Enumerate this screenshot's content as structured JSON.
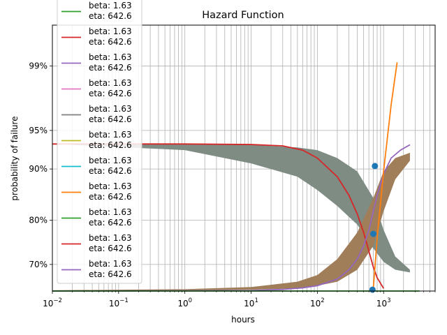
{
  "chart_data": {
    "type": "line",
    "title": "Hazard Function",
    "xlabel": "hours",
    "ylabel": "probability of failure",
    "xscale": "log",
    "xlim": [
      0.01,
      6000
    ],
    "x_ticks": [
      0.01,
      0.1,
      1,
      10,
      100,
      1000
    ],
    "x_tick_labels": [
      {
        "base": "10",
        "exp": "−2"
      },
      {
        "base": "10",
        "exp": "−1"
      },
      {
        "base": "10",
        "exp": "0"
      },
      {
        "base": "10",
        "exp": "1"
      },
      {
        "base": "10",
        "exp": "2"
      },
      {
        "base": "10",
        "exp": "3"
      }
    ],
    "y_ticks": [
      {
        "label": "70%",
        "frac": 0.1
      },
      {
        "label": "80%",
        "frac": 0.266
      },
      {
        "label": "90%",
        "frac": 0.459
      },
      {
        "label": "95%",
        "frac": 0.604
      },
      {
        "label": "99%",
        "frac": 0.846
      }
    ],
    "grid": true,
    "legend_position": "top-left",
    "legend": [
      {
        "label": "beta: 1.63\neta: 642.6",
        "color": "#2ca02c"
      },
      {
        "label": "beta: 1.63\neta: 642.6",
        "color": "#d62728"
      },
      {
        "label": "beta: 1.63\neta: 642.6",
        "color": "#9467bd"
      },
      {
        "label": "beta: 1.63\neta: 642.6",
        "color": "#e377c2"
      },
      {
        "label": "beta: 1.63\neta: 642.6",
        "color": "#7f7f7f"
      },
      {
        "label": "beta: 1.63\neta: 642.6",
        "color": "#bcbd22"
      },
      {
        "label": "beta: 1.63\neta: 642.6",
        "color": "#17becf"
      },
      {
        "label": "beta: 1.63\neta: 642.6",
        "color": "#ff7f0e"
      },
      {
        "label": "beta: 1.63\neta: 642.6",
        "color": "#2ca02c"
      },
      {
        "label": "beta: 1.63\neta: 642.6",
        "color": "#d62728"
      },
      {
        "label": "beta: 1.63\neta: 642.6",
        "color": "#9467bd"
      }
    ],
    "bands": [
      {
        "name": "",
        "color": "#7f8c84",
        "x": [
          0.01,
          1,
          10,
          50,
          100,
          200,
          400,
          700,
          1000,
          1500,
          2500
        ],
        "upper": [
          0.553,
          0.553,
          0.55,
          0.54,
          0.53,
          0.5,
          0.45,
          0.35,
          0.23,
          0.13,
          0.08
        ],
        "lower": [
          0.553,
          0.53,
          0.48,
          0.43,
          0.38,
          0.32,
          0.25,
          0.16,
          0.11,
          0.08,
          0.07
        ]
      },
      {
        "name": "",
        "color": "#a07e5a",
        "x": [
          0.01,
          1,
          10,
          50,
          100,
          200,
          400,
          700,
          1000,
          1500,
          2500
        ],
        "upper": [
          0.003,
          0.007,
          0.015,
          0.035,
          0.06,
          0.12,
          0.22,
          0.35,
          0.45,
          0.5,
          0.52
        ],
        "lower": [
          0.002,
          0.003,
          0.005,
          0.01,
          0.02,
          0.035,
          0.08,
          0.17,
          0.3,
          0.42,
          0.49
        ]
      }
    ],
    "series": [
      {
        "name": "",
        "color": "#d62728",
        "x": [
          0.01,
          1,
          10,
          30,
          60,
          100,
          200,
          300,
          400,
          500,
          600,
          700,
          800,
          1000
        ],
        "frac": [
          0.553,
          0.553,
          0.551,
          0.546,
          0.53,
          0.5,
          0.43,
          0.36,
          0.29,
          0.22,
          0.15,
          0.09,
          0.05,
          0.01
        ]
      },
      {
        "name": "",
        "color": "#9467bd",
        "x": [
          0.01,
          1,
          10,
          30,
          60,
          100,
          200,
          300,
          400,
          500,
          600,
          700,
          800,
          1000,
          1300,
          1800,
          2500
        ],
        "frac": [
          0.0,
          0.001,
          0.002,
          0.006,
          0.012,
          0.02,
          0.045,
          0.08,
          0.12,
          0.17,
          0.23,
          0.3,
          0.36,
          0.44,
          0.5,
          0.53,
          0.55
        ]
      },
      {
        "name": "",
        "color": "#ff7f0e",
        "x": [
          700,
          800,
          1000,
          1300,
          1600
        ],
        "frac": [
          0.01,
          0.2,
          0.45,
          0.7,
          0.86
        ]
      },
      {
        "name": "",
        "color": "#2ca02c",
        "x": [
          0.01,
          1000,
          3500
        ],
        "frac": [
          0.0,
          0.0,
          0.0
        ]
      }
    ],
    "points": [
      {
        "x": 680,
        "frac": 0.005,
        "color": "#1f77b4"
      },
      {
        "x": 700,
        "frac": 0.215,
        "color": "#1f77b4"
      },
      {
        "x": 740,
        "frac": 0.47,
        "color": "#1f77b4"
      }
    ]
  }
}
